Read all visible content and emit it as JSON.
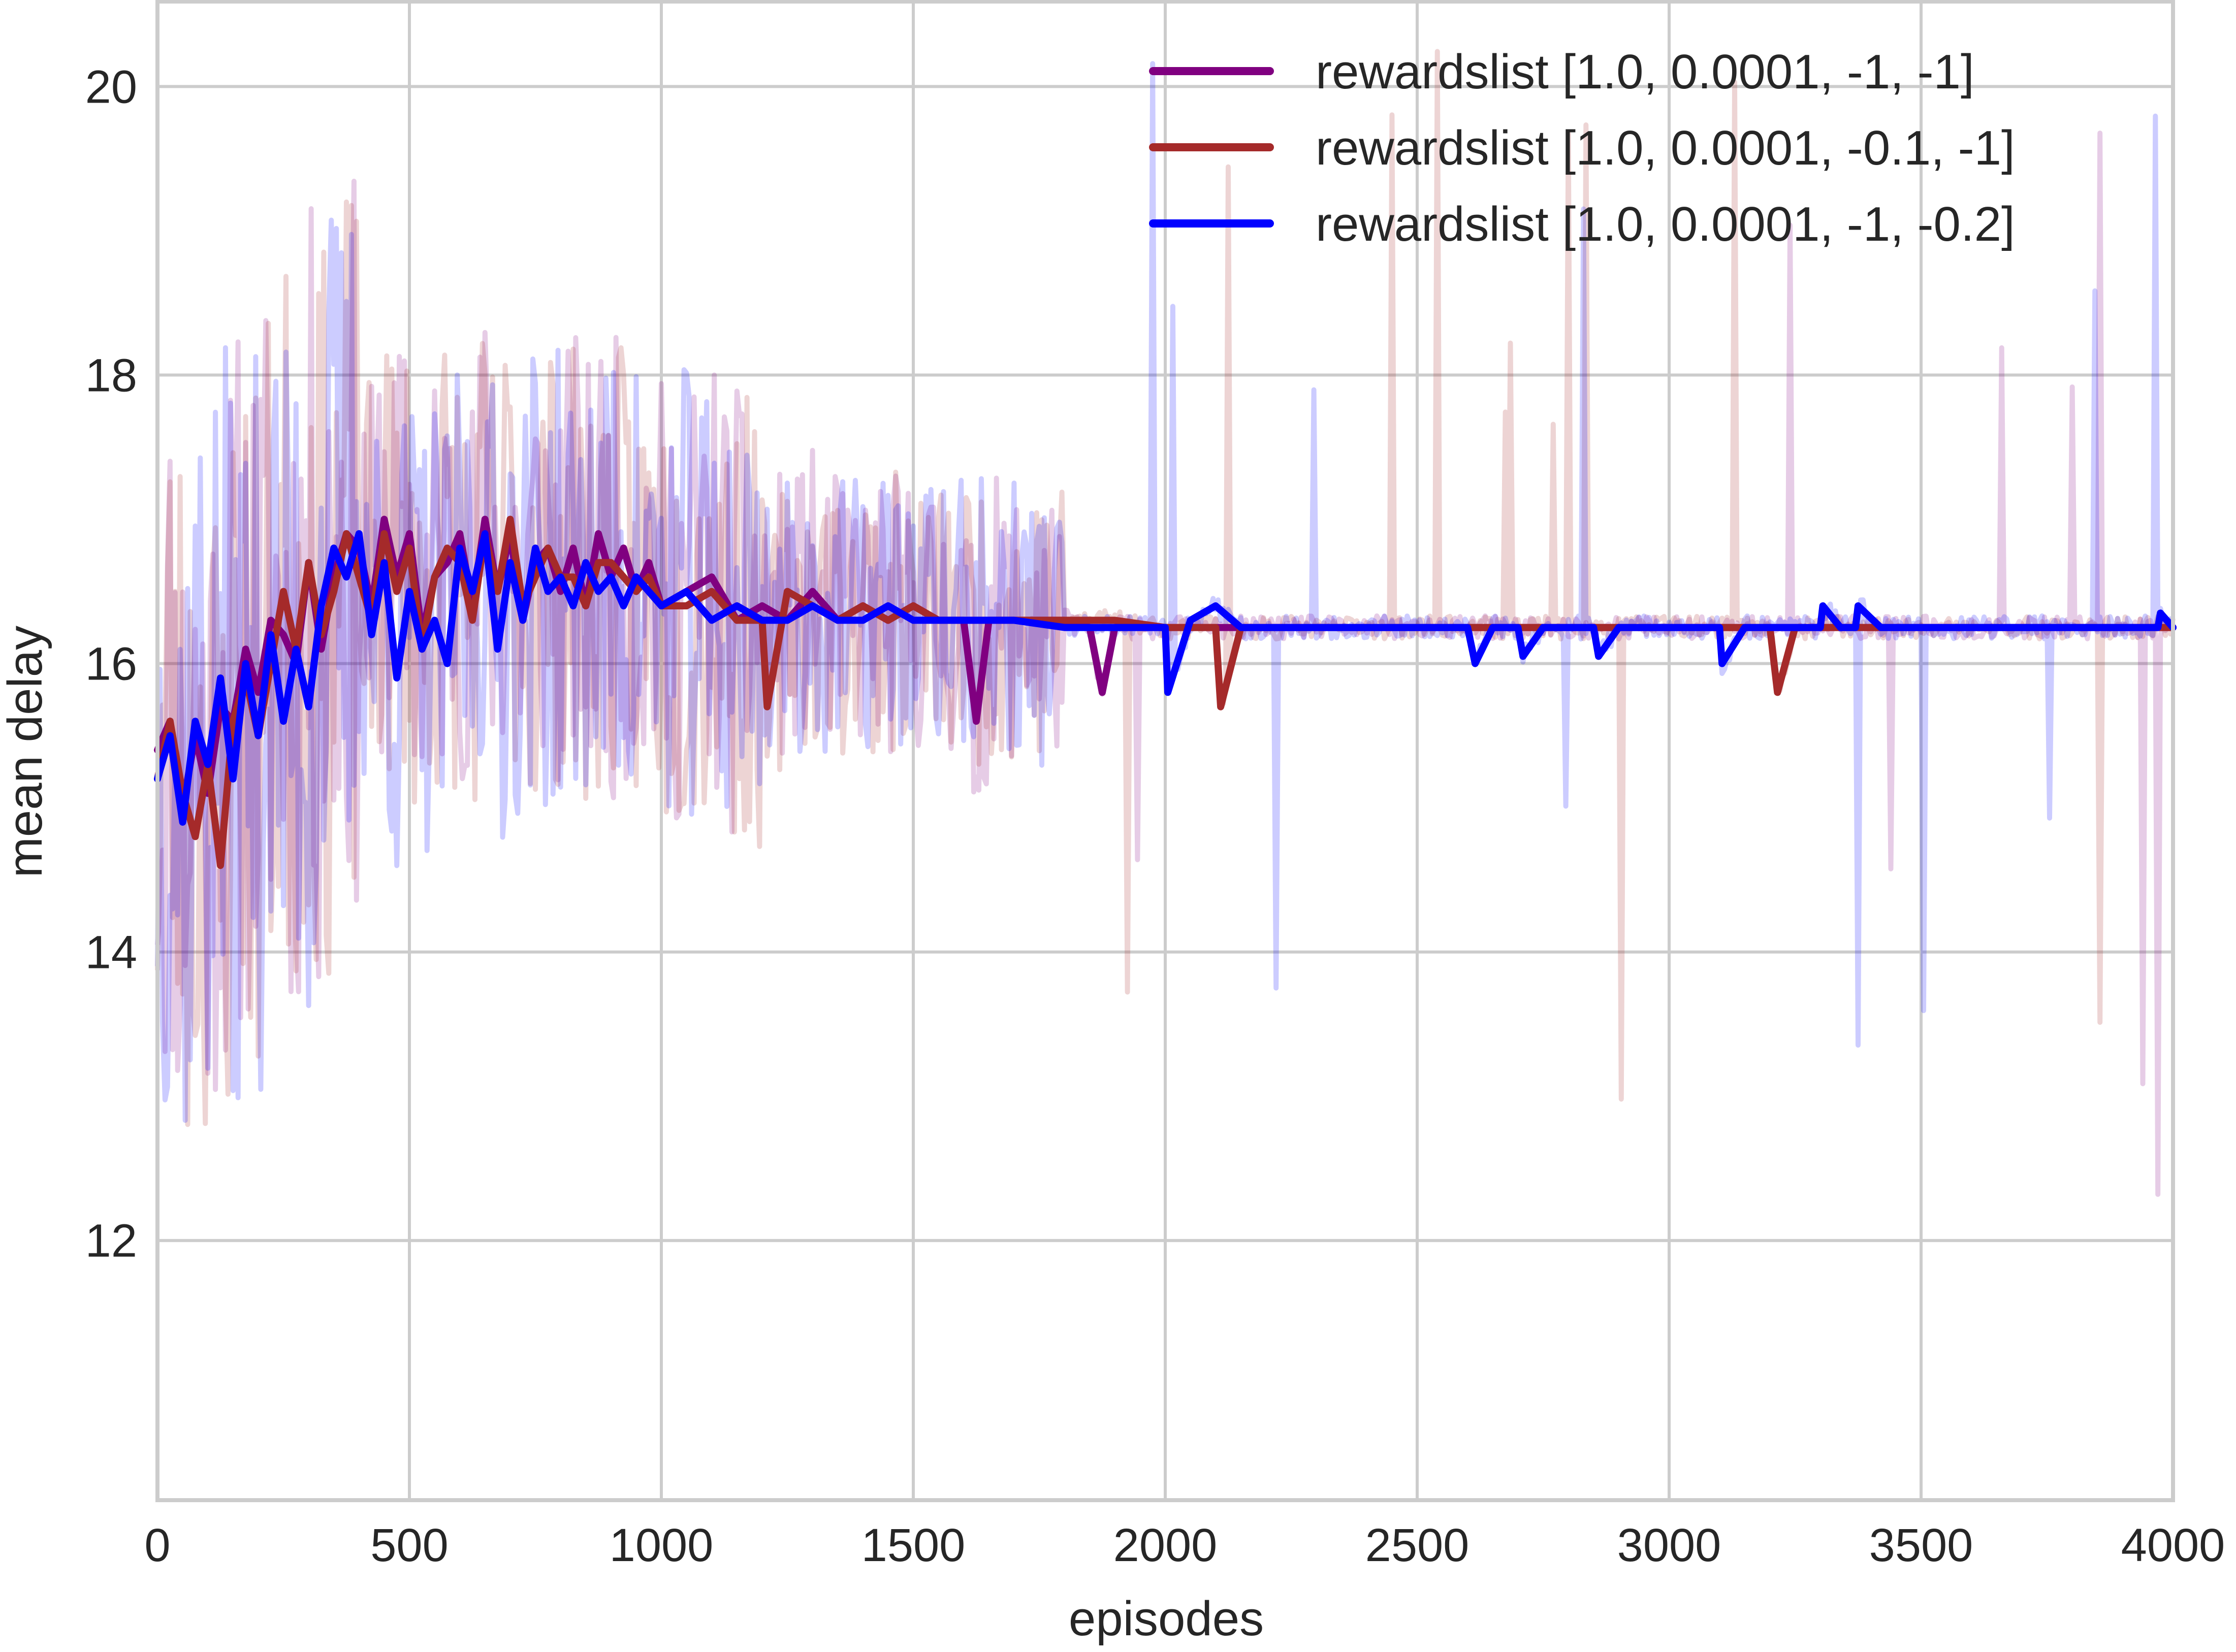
{
  "chart_data": {
    "type": "line",
    "title": "",
    "xlabel": "episodes",
    "ylabel": "mean delay",
    "xlim": [
      0,
      4000
    ],
    "ylim": [
      10.2,
      20.6
    ],
    "xticks": [
      0,
      500,
      1000,
      1500,
      2000,
      2500,
      3000,
      3500,
      4000
    ],
    "yticks": [
      12,
      14,
      16,
      18,
      20
    ],
    "grid": true,
    "legend_position": "top-right",
    "background": "#ffffff",
    "grid_color": "#cccccc",
    "series": [
      {
        "name": "rewardslist [1.0, 0.0001, -1, -1]",
        "color": "#800080",
        "raw_range_note": "",
        "smoothed": [
          [
            0,
            15.4
          ],
          [
            25,
            15.6
          ],
          [
            50,
            15.0
          ],
          [
            75,
            15.5
          ],
          [
            100,
            15.1
          ],
          [
            125,
            15.7
          ],
          [
            150,
            15.6
          ],
          [
            175,
            16.1
          ],
          [
            200,
            15.8
          ],
          [
            225,
            16.3
          ],
          [
            250,
            16.2
          ],
          [
            275,
            16.0
          ],
          [
            300,
            16.7
          ],
          [
            325,
            16.1
          ],
          [
            350,
            16.6
          ],
          [
            375,
            16.9
          ],
          [
            400,
            16.8
          ],
          [
            425,
            16.4
          ],
          [
            450,
            17.0
          ],
          [
            475,
            16.6
          ],
          [
            500,
            16.9
          ],
          [
            525,
            16.2
          ],
          [
            550,
            16.6
          ],
          [
            575,
            16.7
          ],
          [
            600,
            16.9
          ],
          [
            625,
            16.4
          ],
          [
            650,
            17.0
          ],
          [
            675,
            16.5
          ],
          [
            700,
            16.9
          ],
          [
            725,
            16.3
          ],
          [
            750,
            16.7
          ],
          [
            775,
            16.8
          ],
          [
            800,
            16.5
          ],
          [
            825,
            16.8
          ],
          [
            850,
            16.4
          ],
          [
            875,
            16.9
          ],
          [
            900,
            16.6
          ],
          [
            925,
            16.8
          ],
          [
            950,
            16.5
          ],
          [
            975,
            16.7
          ],
          [
            1000,
            16.4
          ],
          [
            1050,
            16.5
          ],
          [
            1100,
            16.6
          ],
          [
            1150,
            16.3
          ],
          [
            1200,
            16.4
          ],
          [
            1250,
            16.3
          ],
          [
            1300,
            16.5
          ],
          [
            1350,
            16.3
          ],
          [
            1400,
            16.4
          ],
          [
            1450,
            16.3
          ],
          [
            1500,
            16.4
          ],
          [
            1550,
            16.3
          ],
          [
            1600,
            16.3
          ],
          [
            1625,
            15.6
          ],
          [
            1650,
            16.3
          ],
          [
            1700,
            16.3
          ],
          [
            1750,
            16.3
          ],
          [
            1800,
            16.3
          ],
          [
            1850,
            16.25
          ],
          [
            1875,
            15.8
          ],
          [
            1900,
            16.25
          ],
          [
            2000,
            16.25
          ],
          [
            2500,
            16.25
          ],
          [
            3000,
            16.25
          ],
          [
            3500,
            16.25
          ],
          [
            4000,
            16.25
          ]
        ]
      },
      {
        "name": "rewardslist [1.0, 0.0001, -0.1, -1]",
        "color": "#a52a2a",
        "smoothed": [
          [
            0,
            15.2
          ],
          [
            25,
            15.6
          ],
          [
            50,
            15.1
          ],
          [
            75,
            14.8
          ],
          [
            100,
            15.3
          ],
          [
            125,
            14.6
          ],
          [
            150,
            15.6
          ],
          [
            175,
            15.9
          ],
          [
            200,
            15.5
          ],
          [
            225,
            16.0
          ],
          [
            250,
            16.5
          ],
          [
            275,
            16.1
          ],
          [
            300,
            16.7
          ],
          [
            325,
            16.2
          ],
          [
            350,
            16.5
          ],
          [
            375,
            16.9
          ],
          [
            400,
            16.6
          ],
          [
            425,
            16.3
          ],
          [
            450,
            16.9
          ],
          [
            475,
            16.5
          ],
          [
            500,
            16.8
          ],
          [
            525,
            16.1
          ],
          [
            550,
            16.6
          ],
          [
            575,
            16.8
          ],
          [
            600,
            16.7
          ],
          [
            625,
            16.3
          ],
          [
            650,
            16.9
          ],
          [
            675,
            16.5
          ],
          [
            700,
            17.0
          ],
          [
            725,
            16.4
          ],
          [
            750,
            16.6
          ],
          [
            775,
            16.8
          ],
          [
            800,
            16.6
          ],
          [
            825,
            16.6
          ],
          [
            850,
            16.4
          ],
          [
            875,
            16.7
          ],
          [
            900,
            16.7
          ],
          [
            925,
            16.6
          ],
          [
            950,
            16.5
          ],
          [
            975,
            16.6
          ],
          [
            1000,
            16.4
          ],
          [
            1050,
            16.4
          ],
          [
            1100,
            16.5
          ],
          [
            1150,
            16.3
          ],
          [
            1200,
            16.3
          ],
          [
            1210,
            15.7
          ],
          [
            1250,
            16.5
          ],
          [
            1300,
            16.4
          ],
          [
            1350,
            16.3
          ],
          [
            1400,
            16.4
          ],
          [
            1450,
            16.3
          ],
          [
            1500,
            16.4
          ],
          [
            1550,
            16.3
          ],
          [
            1600,
            16.3
          ],
          [
            1650,
            16.3
          ],
          [
            1700,
            16.3
          ],
          [
            1750,
            16.3
          ],
          [
            1800,
            16.3
          ],
          [
            1900,
            16.3
          ],
          [
            2000,
            16.25
          ],
          [
            2100,
            16.25
          ],
          [
            2110,
            15.7
          ],
          [
            2150,
            16.25
          ],
          [
            2200,
            16.25
          ],
          [
            3000,
            16.25
          ],
          [
            3200,
            16.25
          ],
          [
            3215,
            15.8
          ],
          [
            3250,
            16.25
          ],
          [
            3500,
            16.25
          ],
          [
            4000,
            16.25
          ]
        ]
      },
      {
        "name": "rewardslist [1.0, 0.0001, -1, -0.2]",
        "color": "#0000ff",
        "smoothed": [
          [
            0,
            15.2
          ],
          [
            25,
            15.5
          ],
          [
            50,
            14.9
          ],
          [
            75,
            15.6
          ],
          [
            100,
            15.3
          ],
          [
            125,
            15.9
          ],
          [
            150,
            15.2
          ],
          [
            175,
            16.0
          ],
          [
            200,
            15.5
          ],
          [
            225,
            16.2
          ],
          [
            250,
            15.6
          ],
          [
            275,
            16.1
          ],
          [
            300,
            15.7
          ],
          [
            325,
            16.4
          ],
          [
            350,
            16.8
          ],
          [
            375,
            16.6
          ],
          [
            400,
            16.9
          ],
          [
            425,
            16.2
          ],
          [
            450,
            16.7
          ],
          [
            475,
            15.9
          ],
          [
            500,
            16.5
          ],
          [
            525,
            16.1
          ],
          [
            550,
            16.3
          ],
          [
            575,
            16.0
          ],
          [
            600,
            16.8
          ],
          [
            625,
            16.5
          ],
          [
            650,
            16.9
          ],
          [
            675,
            16.1
          ],
          [
            700,
            16.7
          ],
          [
            725,
            16.3
          ],
          [
            750,
            16.8
          ],
          [
            775,
            16.5
          ],
          [
            800,
            16.6
          ],
          [
            825,
            16.4
          ],
          [
            850,
            16.7
          ],
          [
            875,
            16.5
          ],
          [
            900,
            16.6
          ],
          [
            925,
            16.4
          ],
          [
            950,
            16.6
          ],
          [
            975,
            16.5
          ],
          [
            1000,
            16.4
          ],
          [
            1050,
            16.5
          ],
          [
            1100,
            16.3
          ],
          [
            1150,
            16.4
          ],
          [
            1200,
            16.3
          ],
          [
            1250,
            16.3
          ],
          [
            1300,
            16.4
          ],
          [
            1350,
            16.3
          ],
          [
            1400,
            16.3
          ],
          [
            1450,
            16.4
          ],
          [
            1500,
            16.3
          ],
          [
            1550,
            16.3
          ],
          [
            1600,
            16.3
          ],
          [
            1700,
            16.3
          ],
          [
            1800,
            16.25
          ],
          [
            1850,
            16.25
          ],
          [
            2000,
            16.25
          ],
          [
            2005,
            15.8
          ],
          [
            2050,
            16.3
          ],
          [
            2100,
            16.4
          ],
          [
            2150,
            16.25
          ],
          [
            2600,
            16.25
          ],
          [
            2615,
            16.0
          ],
          [
            2650,
            16.25
          ],
          [
            2700,
            16.25
          ],
          [
            2710,
            16.05
          ],
          [
            2750,
            16.25
          ],
          [
            2850,
            16.25
          ],
          [
            2860,
            16.05
          ],
          [
            2900,
            16.25
          ],
          [
            3100,
            16.25
          ],
          [
            3105,
            16.0
          ],
          [
            3150,
            16.25
          ],
          [
            3300,
            16.25
          ],
          [
            3305,
            16.4
          ],
          [
            3340,
            16.25
          ],
          [
            3370,
            16.25
          ],
          [
            3375,
            16.4
          ],
          [
            3420,
            16.25
          ],
          [
            3970,
            16.25
          ],
          [
            3975,
            16.35
          ],
          [
            4000,
            16.25
          ]
        ]
      }
    ]
  }
}
